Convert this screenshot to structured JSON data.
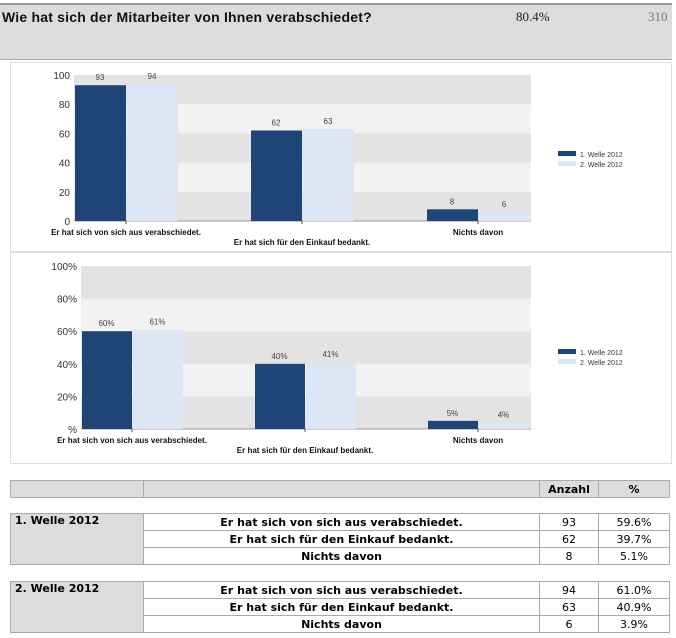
{
  "header": {
    "question": "Wie hat sich der Mitarbeiter von Ihnen verabschiedet?",
    "percent": "80.4%",
    "count": "310"
  },
  "chart_data": [
    {
      "type": "bar",
      "categories": [
        "Er hat sich von sich aus verabschiedet.",
        "Er hat sich für den Einkauf bedankt.",
        "Nichts davon"
      ],
      "series": [
        {
          "name": "1. Welle 2012",
          "values": [
            93,
            62,
            8
          ],
          "labels": [
            "93",
            "62",
            "8"
          ]
        },
        {
          "name": "2. Welle 2012",
          "values": [
            94,
            63,
            6
          ],
          "labels": [
            "94",
            "63",
            "6"
          ]
        }
      ],
      "yticks": [
        "0",
        "20",
        "40",
        "60",
        "80",
        "100"
      ],
      "ylim": [
        0,
        100
      ],
      "legend": "right",
      "colors": [
        "#1f4577",
        "#dce6f5"
      ]
    },
    {
      "type": "bar",
      "categories": [
        "Er hat sich von sich aus verabschiedet.",
        "Er hat sich für den Einkauf bedankt.",
        "Nichts davon"
      ],
      "series": [
        {
          "name": "1. Welle 2012",
          "values": [
            60,
            40,
            5
          ],
          "labels": [
            "60%",
            "40%",
            "5%"
          ]
        },
        {
          "name": "2. Welle 2012",
          "values": [
            61,
            41,
            4
          ],
          "labels": [
            "61%",
            "41%",
            "4%"
          ]
        }
      ],
      "yticks": [
        "%",
        "20%",
        "40%",
        "60%",
        "80%",
        "100%"
      ],
      "ylim": [
        0,
        100
      ],
      "legend": "right",
      "colors": [
        "#1f4577",
        "#dce6f5"
      ]
    }
  ],
  "table": {
    "headers": {
      "count": "Anzahl",
      "percent": "%"
    },
    "groups": [
      {
        "name": "1. Welle 2012",
        "rows": [
          {
            "label": "Er hat sich von sich aus verabschiedet.",
            "count": "93",
            "percent": "59.6%"
          },
          {
            "label": "Er hat sich für den Einkauf bedankt.",
            "count": "62",
            "percent": "39.7%"
          },
          {
            "label": "Nichts davon",
            "count": "8",
            "percent": "5.1%"
          }
        ]
      },
      {
        "name": "2. Welle 2012",
        "rows": [
          {
            "label": "Er hat sich von sich aus verabschiedet.",
            "count": "94",
            "percent": "61.0%"
          },
          {
            "label": "Er hat sich für den Einkauf bedankt.",
            "count": "63",
            "percent": "40.9%"
          },
          {
            "label": "Nichts davon",
            "count": "6",
            "percent": "3.9%"
          }
        ]
      }
    ]
  }
}
